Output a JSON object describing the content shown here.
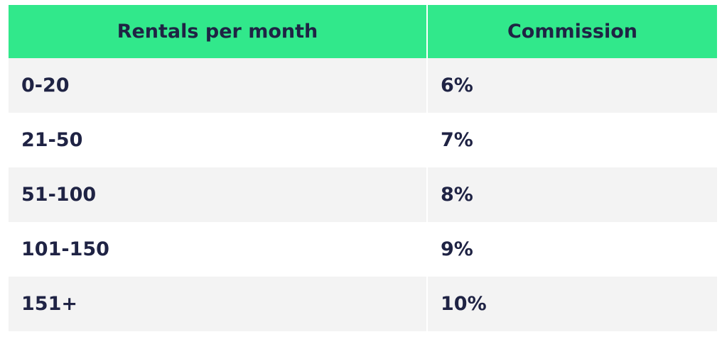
{
  "table": {
    "header": [
      "Rentals per month",
      "Commission"
    ],
    "rows": [
      [
        "0-20",
        "6%"
      ],
      [
        "21-50",
        "7%"
      ],
      [
        "51-100",
        "8%"
      ],
      [
        "101-150",
        "9%"
      ],
      [
        "151+",
        "10%"
      ]
    ]
  }
}
